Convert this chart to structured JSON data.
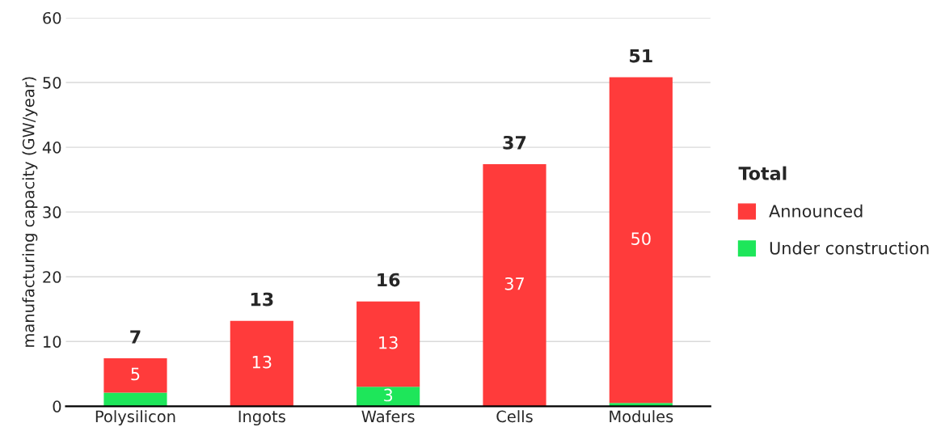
{
  "chart_data": {
    "type": "bar",
    "stacked": true,
    "ylabel": "manufacturing capacity (GW/year)",
    "categories": [
      "Polysilicon",
      "Ingots",
      "Wafers",
      "Cells",
      "Modules"
    ],
    "series": [
      {
        "name": "Under construction",
        "color": "#1ee65a",
        "values": [
          2.1,
          0,
          3.0,
          0,
          0.5
        ],
        "value_labels": [
          null,
          null,
          "3",
          null,
          null
        ]
      },
      {
        "name": "Announced",
        "color": "#ff3b3b",
        "values": [
          5.3,
          13.2,
          13.2,
          37.4,
          50.3
        ],
        "value_labels": [
          "5",
          "13",
          "13",
          "37",
          "50"
        ]
      }
    ],
    "totals": [
      "7",
      "13",
      "16",
      "37",
      "51"
    ],
    "legend_title": "Total",
    "ylim": [
      0,
      60
    ],
    "yticks": [
      0,
      10,
      20,
      30,
      40,
      50,
      60
    ],
    "grid": "y",
    "legend": "right"
  }
}
